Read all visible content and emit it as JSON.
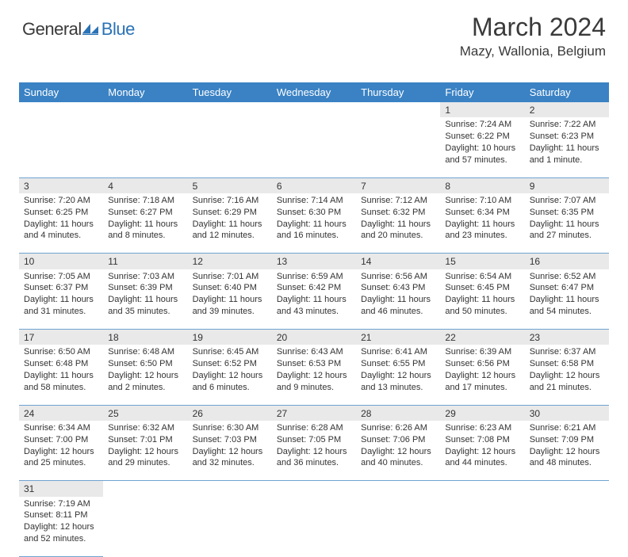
{
  "logo": {
    "part1": "General",
    "part2": "Blue"
  },
  "title": "March 2024",
  "location": "Mazy, Wallonia, Belgium",
  "colors": {
    "header_bg": "#3a82c4",
    "header_text": "#ffffff",
    "daynum_bg": "#e9e9e9",
    "row_border": "#6fa3d0",
    "logo_blue": "#2a72b5",
    "text": "#333333"
  },
  "weekdays": [
    "Sunday",
    "Monday",
    "Tuesday",
    "Wednesday",
    "Thursday",
    "Friday",
    "Saturday"
  ],
  "weeks": [
    [
      null,
      null,
      null,
      null,
      null,
      {
        "n": "1",
        "sr": "Sunrise: 7:24 AM",
        "ss": "Sunset: 6:22 PM",
        "d1": "Daylight: 10 hours",
        "d2": "and 57 minutes."
      },
      {
        "n": "2",
        "sr": "Sunrise: 7:22 AM",
        "ss": "Sunset: 6:23 PM",
        "d1": "Daylight: 11 hours",
        "d2": "and 1 minute."
      }
    ],
    [
      {
        "n": "3",
        "sr": "Sunrise: 7:20 AM",
        "ss": "Sunset: 6:25 PM",
        "d1": "Daylight: 11 hours",
        "d2": "and 4 minutes."
      },
      {
        "n": "4",
        "sr": "Sunrise: 7:18 AM",
        "ss": "Sunset: 6:27 PM",
        "d1": "Daylight: 11 hours",
        "d2": "and 8 minutes."
      },
      {
        "n": "5",
        "sr": "Sunrise: 7:16 AM",
        "ss": "Sunset: 6:29 PM",
        "d1": "Daylight: 11 hours",
        "d2": "and 12 minutes."
      },
      {
        "n": "6",
        "sr": "Sunrise: 7:14 AM",
        "ss": "Sunset: 6:30 PM",
        "d1": "Daylight: 11 hours",
        "d2": "and 16 minutes."
      },
      {
        "n": "7",
        "sr": "Sunrise: 7:12 AM",
        "ss": "Sunset: 6:32 PM",
        "d1": "Daylight: 11 hours",
        "d2": "and 20 minutes."
      },
      {
        "n": "8",
        "sr": "Sunrise: 7:10 AM",
        "ss": "Sunset: 6:34 PM",
        "d1": "Daylight: 11 hours",
        "d2": "and 23 minutes."
      },
      {
        "n": "9",
        "sr": "Sunrise: 7:07 AM",
        "ss": "Sunset: 6:35 PM",
        "d1": "Daylight: 11 hours",
        "d2": "and 27 minutes."
      }
    ],
    [
      {
        "n": "10",
        "sr": "Sunrise: 7:05 AM",
        "ss": "Sunset: 6:37 PM",
        "d1": "Daylight: 11 hours",
        "d2": "and 31 minutes."
      },
      {
        "n": "11",
        "sr": "Sunrise: 7:03 AM",
        "ss": "Sunset: 6:39 PM",
        "d1": "Daylight: 11 hours",
        "d2": "and 35 minutes."
      },
      {
        "n": "12",
        "sr": "Sunrise: 7:01 AM",
        "ss": "Sunset: 6:40 PM",
        "d1": "Daylight: 11 hours",
        "d2": "and 39 minutes."
      },
      {
        "n": "13",
        "sr": "Sunrise: 6:59 AM",
        "ss": "Sunset: 6:42 PM",
        "d1": "Daylight: 11 hours",
        "d2": "and 43 minutes."
      },
      {
        "n": "14",
        "sr": "Sunrise: 6:56 AM",
        "ss": "Sunset: 6:43 PM",
        "d1": "Daylight: 11 hours",
        "d2": "and 46 minutes."
      },
      {
        "n": "15",
        "sr": "Sunrise: 6:54 AM",
        "ss": "Sunset: 6:45 PM",
        "d1": "Daylight: 11 hours",
        "d2": "and 50 minutes."
      },
      {
        "n": "16",
        "sr": "Sunrise: 6:52 AM",
        "ss": "Sunset: 6:47 PM",
        "d1": "Daylight: 11 hours",
        "d2": "and 54 minutes."
      }
    ],
    [
      {
        "n": "17",
        "sr": "Sunrise: 6:50 AM",
        "ss": "Sunset: 6:48 PM",
        "d1": "Daylight: 11 hours",
        "d2": "and 58 minutes."
      },
      {
        "n": "18",
        "sr": "Sunrise: 6:48 AM",
        "ss": "Sunset: 6:50 PM",
        "d1": "Daylight: 12 hours",
        "d2": "and 2 minutes."
      },
      {
        "n": "19",
        "sr": "Sunrise: 6:45 AM",
        "ss": "Sunset: 6:52 PM",
        "d1": "Daylight: 12 hours",
        "d2": "and 6 minutes."
      },
      {
        "n": "20",
        "sr": "Sunrise: 6:43 AM",
        "ss": "Sunset: 6:53 PM",
        "d1": "Daylight: 12 hours",
        "d2": "and 9 minutes."
      },
      {
        "n": "21",
        "sr": "Sunrise: 6:41 AM",
        "ss": "Sunset: 6:55 PM",
        "d1": "Daylight: 12 hours",
        "d2": "and 13 minutes."
      },
      {
        "n": "22",
        "sr": "Sunrise: 6:39 AM",
        "ss": "Sunset: 6:56 PM",
        "d1": "Daylight: 12 hours",
        "d2": "and 17 minutes."
      },
      {
        "n": "23",
        "sr": "Sunrise: 6:37 AM",
        "ss": "Sunset: 6:58 PM",
        "d1": "Daylight: 12 hours",
        "d2": "and 21 minutes."
      }
    ],
    [
      {
        "n": "24",
        "sr": "Sunrise: 6:34 AM",
        "ss": "Sunset: 7:00 PM",
        "d1": "Daylight: 12 hours",
        "d2": "and 25 minutes."
      },
      {
        "n": "25",
        "sr": "Sunrise: 6:32 AM",
        "ss": "Sunset: 7:01 PM",
        "d1": "Daylight: 12 hours",
        "d2": "and 29 minutes."
      },
      {
        "n": "26",
        "sr": "Sunrise: 6:30 AM",
        "ss": "Sunset: 7:03 PM",
        "d1": "Daylight: 12 hours",
        "d2": "and 32 minutes."
      },
      {
        "n": "27",
        "sr": "Sunrise: 6:28 AM",
        "ss": "Sunset: 7:05 PM",
        "d1": "Daylight: 12 hours",
        "d2": "and 36 minutes."
      },
      {
        "n": "28",
        "sr": "Sunrise: 6:26 AM",
        "ss": "Sunset: 7:06 PM",
        "d1": "Daylight: 12 hours",
        "d2": "and 40 minutes."
      },
      {
        "n": "29",
        "sr": "Sunrise: 6:23 AM",
        "ss": "Sunset: 7:08 PM",
        "d1": "Daylight: 12 hours",
        "d2": "and 44 minutes."
      },
      {
        "n": "30",
        "sr": "Sunrise: 6:21 AM",
        "ss": "Sunset: 7:09 PM",
        "d1": "Daylight: 12 hours",
        "d2": "and 48 minutes."
      }
    ],
    [
      {
        "n": "31",
        "sr": "Sunrise: 7:19 AM",
        "ss": "Sunset: 8:11 PM",
        "d1": "Daylight: 12 hours",
        "d2": "and 52 minutes."
      },
      null,
      null,
      null,
      null,
      null,
      null
    ]
  ]
}
